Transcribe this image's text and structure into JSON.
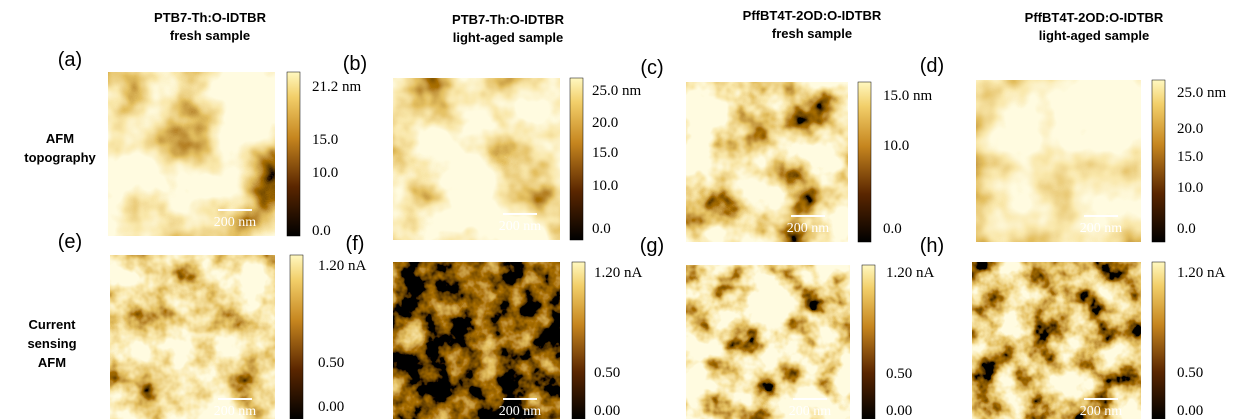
{
  "columns": [
    {
      "title": "PTB7-Th:O-IDTBR",
      "subtitle": "fresh sample"
    },
    {
      "title": "PTB7-Th:O-IDTBR",
      "subtitle": "light-aged sample"
    },
    {
      "title": "PffBT4T-2OD:O-IDTBR",
      "subtitle": "fresh sample"
    },
    {
      "title": "PffBT4T-2OD:O-IDTBR",
      "subtitle": "light-aged sample"
    }
  ],
  "rows": [
    {
      "label": [
        "AFM",
        "topography"
      ]
    },
    {
      "label": [
        "Current",
        "sensing",
        "AFM"
      ]
    }
  ],
  "panels": [
    {
      "letter": "(a)",
      "scale_bar": "200 nm",
      "colorbar": [
        "21.2 nm",
        "15.0",
        "10.0",
        "0.0"
      ]
    },
    {
      "letter": "(b)",
      "scale_bar": "200 nm",
      "colorbar": [
        "25.0 nm",
        "20.0",
        "15.0",
        "10.0",
        "0.0"
      ]
    },
    {
      "letter": "(c)",
      "scale_bar": "200 nm",
      "colorbar": [
        "15.0 nm",
        "10.0",
        "0.0"
      ]
    },
    {
      "letter": "(d)",
      "scale_bar": "200 nm",
      "colorbar": [
        "25.0 nm",
        "20.0",
        "15.0",
        "10.0",
        "0.0"
      ]
    },
    {
      "letter": "(e)",
      "scale_bar": "200 nm",
      "colorbar": [
        "1.20 nA",
        "0.50",
        "0.00"
      ]
    },
    {
      "letter": "(f)",
      "scale_bar": "200 nm",
      "colorbar": [
        "1.20 nA",
        "0.50",
        "0.00"
      ]
    },
    {
      "letter": "(g)",
      "scale_bar": "200 nm",
      "colorbar": [
        "1.20 nA",
        "0.50",
        "0.00"
      ]
    },
    {
      "letter": "(h)",
      "scale_bar": "200 nm",
      "colorbar": [
        "1.20 nA",
        "0.50",
        "0.00"
      ]
    }
  ]
}
